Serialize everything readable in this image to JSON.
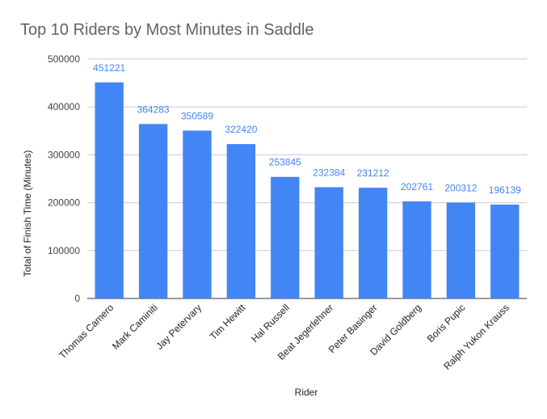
{
  "chart_data": {
    "type": "bar",
    "title": "Top 10 Riders by Most Minutes in Saddle",
    "xlabel": "Rider",
    "ylabel": "Total of Finish Time (Minutes)",
    "ylim": [
      0,
      500000
    ],
    "yticks": [
      "0",
      "100000",
      "200000",
      "300000",
      "400000",
      "500000"
    ],
    "grid": true,
    "categories": [
      "Thomas Camero",
      "Mark Caminiti",
      "Jay Petervary",
      "Tim Hewitt",
      "Hal Russell",
      "Beat Jegerlehner",
      "Peter Basinger",
      "David Goldberg",
      "Boris Pupic",
      "Ralph Yukon Krauss"
    ],
    "values": [
      451221,
      364283,
      350589,
      322420,
      253845,
      232384,
      231212,
      202761,
      200312,
      196139
    ],
    "data_labels": [
      "451221",
      "364283",
      "350589",
      "322420",
      "253845",
      "232384",
      "231212",
      "202761",
      "200312",
      "196139"
    ],
    "bar_color": "#4285f4",
    "label_color": "#4285f4"
  }
}
